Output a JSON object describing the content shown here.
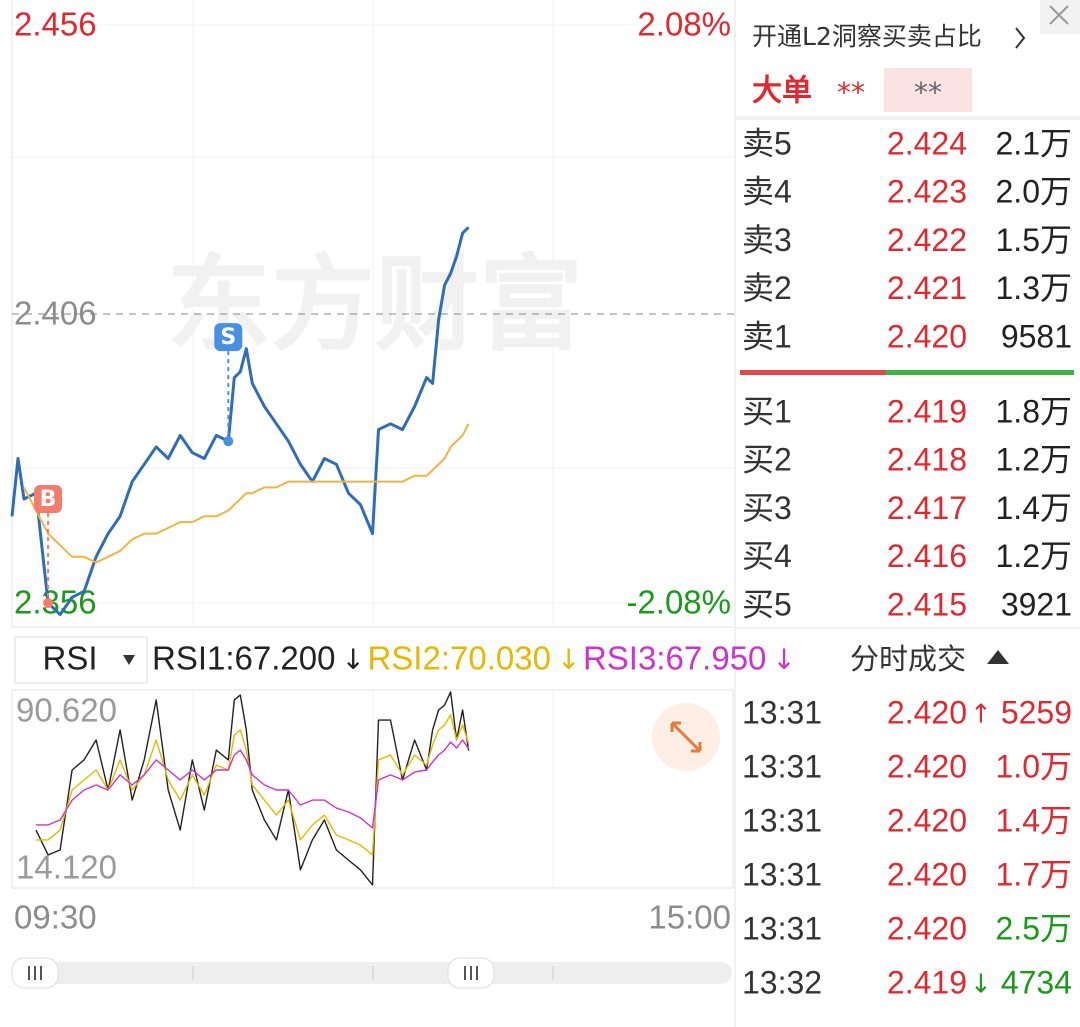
{
  "chart_data": [
    {
      "type": "line",
      "watermark": "东方财富",
      "x": [
        "09:30",
        "09:32",
        "09:34",
        "09:38",
        "09:42",
        "09:46",
        "09:50",
        "09:54",
        "09:58",
        "10:02",
        "10:06",
        "10:10",
        "10:14",
        "10:18",
        "10:22",
        "10:26",
        "10:30",
        "10:34",
        "10:38",
        "10:42",
        "10:44",
        "10:46",
        "10:48",
        "10:50",
        "10:54",
        "10:58",
        "11:02",
        "11:06",
        "11:10",
        "11:14",
        "11:18",
        "11:22",
        "11:26",
        "11:30",
        "13:02",
        "13:06",
        "13:10",
        "13:14",
        "13:18",
        "13:20",
        "13:22",
        "13:24",
        "13:26",
        "13:28",
        "13:30",
        "13:32"
      ],
      "xlim": [
        "09:30",
        "15:00"
      ],
      "xticks": [
        "09:30",
        "15:00"
      ],
      "ylim": [
        2.356,
        2.456
      ],
      "yticks": [
        2.456,
        2.406,
        2.356
      ],
      "ytick_colors": [
        "#e0282e",
        "#8c8c8c",
        "#1a9a1a"
      ],
      "y2lim": [
        -2.08,
        2.08
      ],
      "y2ticks": [
        {
          "value": 2.08,
          "label": "2.08%"
        },
        {
          "value": -2.08,
          "label": "-2.08%"
        }
      ],
      "y2tick_colors": [
        "#e0282e",
        "#1a9a1a"
      ],
      "series": [
        {
          "color": "#2f6db5",
          "values": [
            2.371,
            2.381,
            2.374,
            2.375,
            2.356,
            2.354,
            2.357,
            2.358,
            2.364,
            2.368,
            2.371,
            2.377,
            2.38,
            2.383,
            2.381,
            2.385,
            2.382,
            2.381,
            2.385,
            2.384,
            2.395,
            2.396,
            2.4,
            2.394,
            2.39,
            2.387,
            2.384,
            2.38,
            2.377,
            2.381,
            2.38,
            2.375,
            2.373,
            2.368,
            2.386,
            2.387,
            2.386,
            2.39,
            2.395,
            2.394,
            2.405,
            2.411,
            2.413,
            2.416,
            2.42,
            2.421
          ]
        },
        {
          "color": "#f0b440",
          "values": [
            null,
            null,
            2.376,
            2.372,
            2.368,
            2.366,
            2.364,
            2.364,
            2.363,
            2.364,
            2.365,
            2.367,
            2.368,
            2.368,
            2.369,
            2.37,
            2.37,
            2.371,
            2.371,
            2.372,
            2.373,
            2.374,
            2.375,
            2.375,
            2.376,
            2.376,
            2.377,
            2.377,
            2.377,
            2.377,
            2.377,
            2.377,
            2.377,
            2.377,
            2.377,
            2.377,
            2.377,
            2.378,
            2.378,
            2.379,
            2.38,
            2.381,
            2.383,
            2.384,
            2.385,
            2.387
          ]
        }
      ],
      "markers": [
        {
          "label": "B",
          "x": "09:42",
          "color": "#f47c6c"
        },
        {
          "label": "S",
          "x": "10:42",
          "color": "#4a90e2"
        }
      ]
    },
    {
      "type": "line",
      "title": "RSI",
      "ylim": [
        14.12,
        90.62
      ],
      "yticks": [
        {
          "value": 90.62,
          "label": "90.620"
        },
        {
          "value": 14.12,
          "label": "14.120"
        }
      ],
      "series": [
        {
          "label": "RSI1:67.200",
          "arrow": "↓",
          "color": "#222222",
          "values": [
            null,
            null,
            null,
            36.5,
            26.9,
            28.8,
            59.7,
            63.6,
            71.3,
            52.0,
            75.2,
            48.1,
            63.6,
            86.8,
            52.0,
            36.5,
            63.6,
            44.2,
            67.4,
            63.6,
            86.8,
            88.7,
            75.2,
            52.0,
            40.4,
            32.7,
            52.0,
            21.1,
            32.7,
            40.4,
            28.8,
            24.9,
            21.1,
            15.3,
            79.0,
            79.0,
            55.9,
            71.3,
            59.7,
            75.2,
            82.9,
            84.8,
            89.9,
            71.3,
            82.9,
            67.2
          ]
        },
        {
          "label": "RSI2:70.030",
          "arrow": "↓",
          "color": "#e6b800",
          "values": [
            null,
            null,
            null,
            32.7,
            32.7,
            36.5,
            52.0,
            55.9,
            59.7,
            52.0,
            63.6,
            52.0,
            57.8,
            71.3,
            55.9,
            48.1,
            57.8,
            50.0,
            61.6,
            59.7,
            73.2,
            75.2,
            67.4,
            53.9,
            48.1,
            42.3,
            48.1,
            32.7,
            38.5,
            42.3,
            34.6,
            32.7,
            30.7,
            26.9,
            63.6,
            65.5,
            57.8,
            65.5,
            61.6,
            69.4,
            75.2,
            77.1,
            81.0,
            71.3,
            77.1,
            70.03
          ]
        },
        {
          "label": "RSI3:67.950",
          "arrow": "↓",
          "color": "#cc33cc",
          "values": [
            null,
            null,
            null,
            38.5,
            38.5,
            40.4,
            48.1,
            52.0,
            53.9,
            52.0,
            57.8,
            53.9,
            57.8,
            63.6,
            59.7,
            55.9,
            59.7,
            55.9,
            59.7,
            59.7,
            65.5,
            67.4,
            63.6,
            57.8,
            53.9,
            52.0,
            52.0,
            46.2,
            48.1,
            48.1,
            45.0,
            43.5,
            41.2,
            37.3,
            55.9,
            57.8,
            55.9,
            58.9,
            59.7,
            62.8,
            65.5,
            67.4,
            70.5,
            68.2,
            71.3,
            67.95
          ]
        }
      ]
    }
  ],
  "order_book": {
    "header": "开通L2洞察买卖占比",
    "big_order": {
      "label": "大单",
      "buy": "**",
      "sell": "**"
    },
    "asks": [
      {
        "label": "卖5",
        "price": "2.424",
        "volume": "2.1万"
      },
      {
        "label": "卖4",
        "price": "2.423",
        "volume": "2.0万"
      },
      {
        "label": "卖3",
        "price": "2.422",
        "volume": "1.5万"
      },
      {
        "label": "卖2",
        "price": "2.421",
        "volume": "1.3万"
      },
      {
        "label": "卖1",
        "price": "2.420",
        "volume": "9581"
      }
    ],
    "bids": [
      {
        "label": "买1",
        "price": "2.419",
        "volume": "1.8万"
      },
      {
        "label": "买2",
        "price": "2.418",
        "volume": "1.2万"
      },
      {
        "label": "买3",
        "price": "2.417",
        "volume": "1.4万"
      },
      {
        "label": "买4",
        "price": "2.416",
        "volume": "1.2万"
      },
      {
        "label": "买5",
        "price": "2.415",
        "volume": "3921"
      }
    ]
  },
  "trades": {
    "title": "分时成交",
    "rows": [
      {
        "time": "13:31",
        "price": "2.420",
        "arrow": "↑",
        "volume": "5259",
        "color": "#e0282e"
      },
      {
        "time": "13:31",
        "price": "2.420",
        "volume": "1.0万",
        "color": "#e0282e"
      },
      {
        "time": "13:31",
        "price": "2.420",
        "volume": "1.4万",
        "color": "#e0282e"
      },
      {
        "time": "13:31",
        "price": "2.420",
        "volume": "1.7万",
        "color": "#e0282e"
      },
      {
        "time": "13:31",
        "price": "2.420",
        "volume": "2.5万",
        "color": "#1a9a1a"
      },
      {
        "time": "13:32",
        "price": "2.419",
        "arrow": "↓",
        "volume": "4734",
        "color": "#1a9a1a"
      }
    ]
  }
}
